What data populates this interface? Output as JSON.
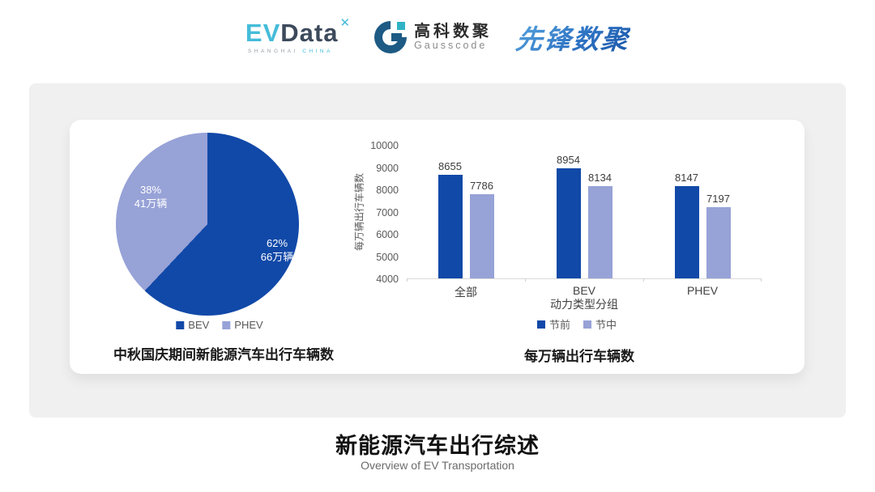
{
  "header": {
    "evdata_logo": {
      "ev": "EV",
      "data": "Data",
      "mark": "✕",
      "sub_left": "SHANGHAI",
      "sub_right": "CHINA"
    },
    "gausscode_logo": {
      "cn": "高科数聚",
      "en": "Gausscode"
    },
    "pioneer_logo": {
      "text": "先锋数聚"
    }
  },
  "colors": {
    "primary_blue": "#1149A8",
    "secondary_blue": "#97A2D7",
    "band_background": "#F0F0F0"
  },
  "chart_data": [
    {
      "type": "pie",
      "title": "中秋国庆期间新能源汽车出行车辆数",
      "labels": [
        "BEV",
        "PHEV"
      ],
      "values": [
        62,
        38
      ],
      "slice_labels": [
        {
          "percent": "62%",
          "amount": "66万辆"
        },
        {
          "percent": "38%",
          "amount": "41万辆"
        }
      ],
      "colors": [
        "#1149A8",
        "#97A2D7"
      ],
      "legend_position": "bottom",
      "start_angle_deg": 0,
      "direction": "clockwise"
    },
    {
      "type": "bar",
      "title": "每万辆出行车辆数",
      "categories": [
        "全部",
        "BEV",
        "PHEV"
      ],
      "series": [
        {
          "name": "节前",
          "values": [
            8655,
            8954,
            8147
          ],
          "color": "#1149A8"
        },
        {
          "name": "节中",
          "values": [
            7786,
            8134,
            7197
          ],
          "color": "#97A2D7"
        }
      ],
      "xlabel": "动力类型分组",
      "ylabel": "每万辆出行车辆数",
      "ylim": [
        4000,
        10000
      ],
      "yticks": [
        4000,
        5000,
        6000,
        7000,
        8000,
        9000,
        10000
      ],
      "grid": false,
      "legend_position": "bottom"
    }
  ],
  "footer": {
    "title": "新能源汽车出行综述",
    "subtitle": "Overview of EV Transportation"
  }
}
